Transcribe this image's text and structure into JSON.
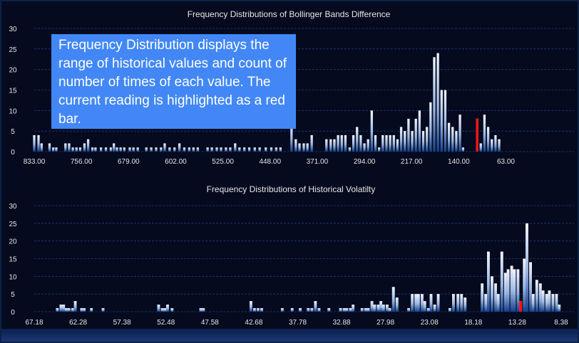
{
  "colors": {
    "background": "#050a1e",
    "text": "#e6e6e6",
    "grid": "#1f3a7a",
    "bar_top": "#f2f6ff",
    "bar_bottom": "#14408c",
    "current": "#ff1010",
    "note_bg": "#4287f5"
  },
  "callout": {
    "text": "Frequency Distribution displays the range of historical values and count of number of times of each value. The current reading is highlighted as a red bar."
  },
  "chart_data": [
    {
      "type": "bar",
      "title": "Frequency Distributions of Bollinger Bands Difference",
      "x_ticks": [
        "833.00",
        "756.00",
        "679.00",
        "602.00",
        "525.00",
        "448.00",
        "371.00",
        "294.00",
        "217.00",
        "140.00",
        "63.00"
      ],
      "y_ticks": [
        "0",
        "5",
        "10",
        "15",
        "20",
        "25",
        "30"
      ],
      "ylim": [
        0,
        30
      ],
      "x_range": [
        833,
        24
      ],
      "grid": true,
      "bin_width": 3.85,
      "current_value": 110,
      "points": [
        [
          833,
          4
        ],
        [
          826,
          4
        ],
        [
          821,
          2
        ],
        [
          808,
          2
        ],
        [
          802,
          1
        ],
        [
          797,
          1
        ],
        [
          782,
          2
        ],
        [
          776,
          2
        ],
        [
          770,
          1
        ],
        [
          764,
          1
        ],
        [
          758,
          1
        ],
        [
          751,
          2
        ],
        [
          745,
          3
        ],
        [
          738,
          1
        ],
        [
          733,
          1
        ],
        [
          724,
          1
        ],
        [
          716,
          1
        ],
        [
          708,
          1
        ],
        [
          703,
          2
        ],
        [
          698,
          1
        ],
        [
          692,
          1
        ],
        [
          686,
          1
        ],
        [
          677,
          1
        ],
        [
          671,
          1
        ],
        [
          664,
          1
        ],
        [
          650,
          1
        ],
        [
          642,
          1
        ],
        [
          634,
          1
        ],
        [
          626,
          1
        ],
        [
          620,
          2
        ],
        [
          612,
          1
        ],
        [
          604,
          1
        ],
        [
          596,
          2
        ],
        [
          588,
          1
        ],
        [
          580,
          1
        ],
        [
          573,
          1
        ],
        [
          566,
          1
        ],
        [
          550,
          1
        ],
        [
          543,
          1
        ],
        [
          535,
          1
        ],
        [
          528,
          1
        ],
        [
          520,
          1
        ],
        [
          513,
          1
        ],
        [
          505,
          2
        ],
        [
          498,
          1
        ],
        [
          490,
          1
        ],
        [
          482,
          1
        ],
        [
          473,
          1
        ],
        [
          465,
          1
        ],
        [
          455,
          1
        ],
        [
          446,
          1
        ],
        [
          438,
          1
        ],
        [
          431,
          1
        ],
        [
          413,
          7
        ],
        [
          406,
          3
        ],
        [
          400,
          2
        ],
        [
          393,
          2
        ],
        [
          387,
          2
        ],
        [
          380,
          4
        ],
        [
          356,
          3
        ],
        [
          349,
          3
        ],
        [
          343,
          3
        ],
        [
          337,
          4
        ],
        [
          331,
          4
        ],
        [
          325,
          4
        ],
        [
          318,
          1
        ],
        [
          312,
          4
        ],
        [
          306,
          6
        ],
        [
          300,
          4
        ],
        [
          294,
          2
        ],
        [
          288,
          3
        ],
        [
          282,
          10
        ],
        [
          276,
          4
        ],
        [
          270,
          1
        ],
        [
          264,
          4
        ],
        [
          258,
          4
        ],
        [
          252,
          4
        ],
        [
          246,
          4
        ],
        [
          240,
          3
        ],
        [
          234,
          6
        ],
        [
          228,
          5
        ],
        [
          222,
          8
        ],
        [
          216,
          5
        ],
        [
          210,
          8
        ],
        [
          204,
          10
        ],
        [
          198,
          5
        ],
        [
          192,
          6
        ],
        [
          186,
          12
        ],
        [
          180,
          23
        ],
        [
          174,
          24
        ],
        [
          168,
          15
        ],
        [
          162,
          15
        ],
        [
          156,
          7
        ],
        [
          150,
          6
        ],
        [
          144,
          5
        ],
        [
          138,
          9
        ],
        [
          133,
          1
        ],
        [
          110,
          8
        ],
        [
          104,
          2
        ],
        [
          98,
          9
        ],
        [
          92,
          6
        ],
        [
          86,
          3
        ],
        [
          80,
          4
        ],
        [
          74,
          3
        ]
      ]
    },
    {
      "type": "bar",
      "title": "Frequency Distributions of Historical  Volatilty",
      "x_ticks": [
        "67.18",
        "62.28",
        "57.38",
        "52.48",
        "47.58",
        "42.68",
        "37.78",
        "32.88",
        "27.98",
        "23.08",
        "18.18",
        "13.28",
        "8.38"
      ],
      "y_ticks": [
        "0",
        "5",
        "10",
        "15",
        "20",
        "25",
        "30"
      ],
      "ylim": [
        0,
        30
      ],
      "x_range": [
        67.18,
        8.38
      ],
      "grid": true,
      "bin_width": 0.31,
      "current_value": 12.9,
      "points": [
        [
          64.6,
          1
        ],
        [
          64.2,
          2
        ],
        [
          63.9,
          2
        ],
        [
          63.6,
          1
        ],
        [
          63.3,
          1
        ],
        [
          62.9,
          1
        ],
        [
          62.6,
          3
        ],
        [
          61.9,
          1
        ],
        [
          61.6,
          1
        ],
        [
          60.8,
          1
        ],
        [
          59.5,
          1
        ],
        [
          53.3,
          2
        ],
        [
          52.9,
          1
        ],
        [
          52.6,
          1
        ],
        [
          52.3,
          2
        ],
        [
          51.8,
          1
        ],
        [
          48.6,
          1
        ],
        [
          48.3,
          1
        ],
        [
          43.0,
          3
        ],
        [
          42.6,
          1
        ],
        [
          42.2,
          1
        ],
        [
          41.8,
          1
        ],
        [
          39.5,
          1
        ],
        [
          38.4,
          1
        ],
        [
          37.5,
          1
        ],
        [
          36.6,
          1
        ],
        [
          36.2,
          1
        ],
        [
          35.8,
          3
        ],
        [
          35.4,
          1
        ],
        [
          34.3,
          1
        ],
        [
          33.0,
          1
        ],
        [
          32.6,
          1
        ],
        [
          32.3,
          1
        ],
        [
          31.9,
          1
        ],
        [
          31.6,
          2
        ],
        [
          30.6,
          1
        ],
        [
          30.2,
          1
        ],
        [
          29.9,
          1
        ],
        [
          29.5,
          3
        ],
        [
          29.2,
          2
        ],
        [
          28.8,
          2
        ],
        [
          28.5,
          3
        ],
        [
          28.2,
          2
        ],
        [
          27.8,
          2
        ],
        [
          27.5,
          1
        ],
        [
          27.1,
          7
        ],
        [
          26.7,
          4
        ],
        [
          25.4,
          1
        ],
        [
          25.0,
          5
        ],
        [
          24.6,
          5
        ],
        [
          24.3,
          5
        ],
        [
          23.9,
          5
        ],
        [
          23.6,
          3
        ],
        [
          23.2,
          1
        ],
        [
          22.9,
          5
        ],
        [
          22.5,
          2
        ],
        [
          22.1,
          5
        ],
        [
          20.8,
          1
        ],
        [
          20.4,
          5
        ],
        [
          19.9,
          5
        ],
        [
          19.5,
          5
        ],
        [
          19.1,
          4
        ],
        [
          17.2,
          8
        ],
        [
          16.8,
          5
        ],
        [
          16.5,
          17
        ],
        [
          16.1,
          10
        ],
        [
          15.7,
          8
        ],
        [
          15.4,
          5
        ],
        [
          15.0,
          17
        ],
        [
          14.6,
          11
        ],
        [
          14.3,
          12
        ],
        [
          13.9,
          13
        ],
        [
          13.6,
          12
        ],
        [
          13.2,
          12
        ],
        [
          12.9,
          3
        ],
        [
          12.5,
          15
        ],
        [
          12.2,
          25
        ],
        [
          11.8,
          14
        ],
        [
          11.5,
          5
        ],
        [
          11.1,
          9
        ],
        [
          10.7,
          8
        ],
        [
          10.4,
          6
        ],
        [
          10.0,
          5
        ],
        [
          9.7,
          6
        ],
        [
          9.3,
          5
        ],
        [
          8.9,
          5
        ],
        [
          8.6,
          2
        ]
      ]
    }
  ]
}
